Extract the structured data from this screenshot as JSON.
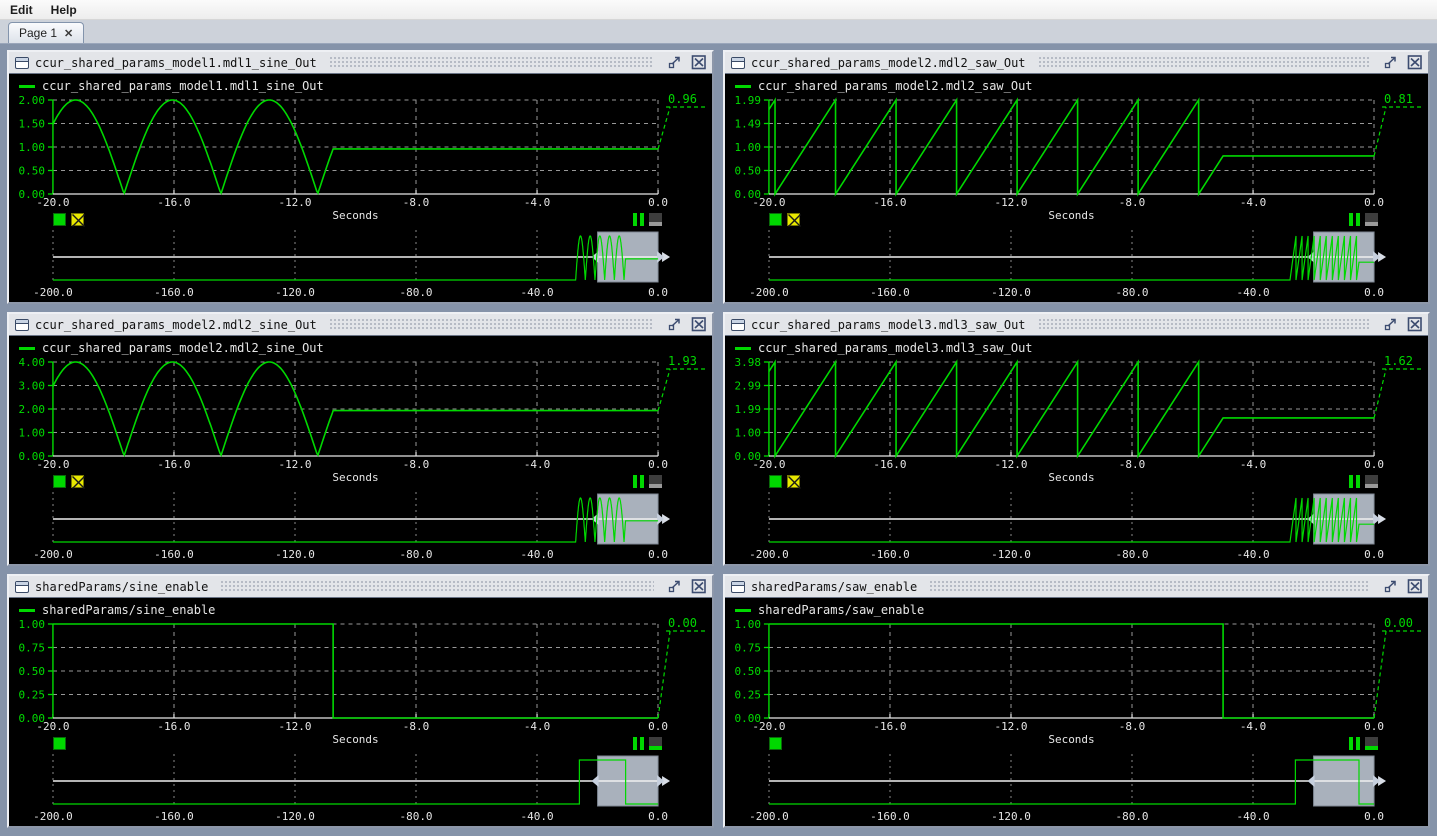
{
  "menu": {
    "items": [
      {
        "label": "Edit"
      },
      {
        "label": "Help"
      }
    ]
  },
  "tabs": [
    {
      "label": "Page 1",
      "close_glyph": "✕"
    }
  ],
  "colors": {
    "trace_green": "#00d800",
    "tick_label_green": "#00dd00",
    "axis_label_white": "#e6e6e6",
    "grid_gray": "#989898",
    "plot_background": "#000000",
    "window_background": "#8593a9",
    "viewport_box_fill": "#a9b1bc",
    "viewport_handle": "#c7d0de",
    "marker_yellow": "#e8e800",
    "indicator_gray": "#9a9a9a"
  },
  "panels": [
    {
      "title": "ccur_shared_params_model1.mdl1_sine_Out",
      "controls": {
        "run_button": true,
        "marker_button": true,
        "pause_icon": true,
        "indicator_strip": "#9a9a9a"
      },
      "chart_data": {
        "type": "line",
        "legend": "ccur_shared_params_model1.mdl1_sine_Out",
        "current_value": "0.96",
        "xlabel": "Seconds",
        "xlim": [
          -20,
          0
        ],
        "x_ticks": [
          "-20.0",
          "-16.0",
          "-12.0",
          "-8.0",
          "-4.0",
          "0.0"
        ],
        "ylim": [
          0,
          2
        ],
        "y_tick_labels": [
          "2.00",
          "1.50",
          "1.00",
          "0.50",
          "0.00"
        ],
        "grid": true,
        "signal": {
          "kind": "rect_sine",
          "amplitude": 2,
          "half_period": 3.2,
          "zero_ref": -17.65,
          "active_from": -27.25,
          "freeze_t": -10.74,
          "freeze_value": 0.96
        },
        "overview": {
          "xlim": [
            -200,
            0
          ],
          "x_ticks": [
            "-200.0",
            "-160.0",
            "-120.0",
            "-80.0",
            "-40.0",
            "0.0"
          ],
          "view_window": [
            -20,
            0
          ]
        }
      }
    },
    {
      "title": "ccur_shared_params_model2.mdl2_saw_Out",
      "controls": {
        "run_button": true,
        "marker_button": true,
        "pause_icon": true,
        "indicator_strip": "#9a9a9a"
      },
      "chart_data": {
        "type": "line",
        "legend": "ccur_shared_params_model2.mdl2_saw_Out",
        "current_value": "0.81",
        "xlabel": "Seconds",
        "xlim": [
          -20,
          0
        ],
        "x_ticks": [
          "-20.0",
          "-16.0",
          "-12.0",
          "-8.0",
          "-4.0",
          "0.0"
        ],
        "ylim": [
          0,
          2
        ],
        "y_tick_labels": [
          "1.99",
          "1.49",
          "1.00",
          "0.50",
          "0.00"
        ],
        "grid": true,
        "signal": {
          "kind": "sawtooth",
          "amplitude": 2,
          "period": 2,
          "drop_ref": -5.8,
          "active_from": -27.8,
          "freeze_t": -4.99,
          "freeze_value": 0.81
        },
        "overview": {
          "xlim": [
            -200,
            0
          ],
          "x_ticks": [
            "-200.0",
            "-160.0",
            "-120.0",
            "-80.0",
            "-40.0",
            "0.0"
          ],
          "view_window": [
            -20,
            0
          ]
        }
      }
    },
    {
      "title": "ccur_shared_params_model2.mdl2_sine_Out",
      "controls": {
        "run_button": true,
        "marker_button": true,
        "pause_icon": true,
        "indicator_strip": "#9a9a9a"
      },
      "chart_data": {
        "type": "line",
        "legend": "ccur_shared_params_model2.mdl2_sine_Out",
        "current_value": "1.93",
        "xlabel": "Seconds",
        "xlim": [
          -20,
          0
        ],
        "x_ticks": [
          "-20.0",
          "-16.0",
          "-12.0",
          "-8.0",
          "-4.0",
          "0.0"
        ],
        "ylim": [
          0,
          4
        ],
        "y_tick_labels": [
          "4.00",
          "3.00",
          "2.00",
          "1.00",
          "0.00"
        ],
        "grid": true,
        "signal": {
          "kind": "rect_sine",
          "amplitude": 4,
          "half_period": 3.2,
          "zero_ref": -17.65,
          "active_from": -27.25,
          "freeze_t": -10.74,
          "freeze_value": 1.93
        },
        "overview": {
          "xlim": [
            -200,
            0
          ],
          "x_ticks": [
            "-200.0",
            "-160.0",
            "-120.0",
            "-80.0",
            "-40.0",
            "0.0"
          ],
          "view_window": [
            -20,
            0
          ]
        }
      }
    },
    {
      "title": "ccur_shared_params_model3.mdl3_saw_Out",
      "controls": {
        "run_button": true,
        "marker_button": true,
        "pause_icon": true,
        "indicator_strip": "#9a9a9a"
      },
      "chart_data": {
        "type": "line",
        "legend": "ccur_shared_params_model3.mdl3_saw_Out",
        "current_value": "1.62",
        "xlabel": "Seconds",
        "xlim": [
          -20,
          0
        ],
        "x_ticks": [
          "-20.0",
          "-16.0",
          "-12.0",
          "-8.0",
          "-4.0",
          "0.0"
        ],
        "ylim": [
          0,
          4
        ],
        "y_tick_labels": [
          "3.98",
          "2.99",
          "1.99",
          "1.00",
          "0.00"
        ],
        "grid": true,
        "signal": {
          "kind": "sawtooth",
          "amplitude": 4,
          "period": 2,
          "drop_ref": -5.8,
          "active_from": -27.8,
          "freeze_t": -4.99,
          "freeze_value": 1.62
        },
        "overview": {
          "xlim": [
            -200,
            0
          ],
          "x_ticks": [
            "-200.0",
            "-160.0",
            "-120.0",
            "-80.0",
            "-40.0",
            "0.0"
          ],
          "view_window": [
            -20,
            0
          ]
        }
      }
    },
    {
      "title": "sharedParams/sine_enable",
      "controls": {
        "run_button": true,
        "marker_button": false,
        "pause_icon": true,
        "indicator_strip": "#00d800"
      },
      "chart_data": {
        "type": "line",
        "legend": "sharedParams/sine_enable",
        "current_value": "0.00",
        "xlabel": "Seconds",
        "xlim": [
          -20,
          0
        ],
        "x_ticks": [
          "-20.0",
          "-16.0",
          "-12.0",
          "-8.0",
          "-4.0",
          "0.0"
        ],
        "ylim": [
          0,
          1
        ],
        "y_tick_labels": [
          "1.00",
          "0.75",
          "0.50",
          "0.25",
          "0.00"
        ],
        "grid": true,
        "signal": {
          "kind": "step",
          "high": 1,
          "rise_t": -26,
          "drop_t": -10.74
        },
        "overview": {
          "xlim": [
            -200,
            0
          ],
          "x_ticks": [
            "-200.0",
            "-160.0",
            "-120.0",
            "-80.0",
            "-40.0",
            "0.0"
          ],
          "view_window": [
            -20,
            0
          ]
        }
      }
    },
    {
      "title": "sharedParams/saw_enable",
      "controls": {
        "run_button": true,
        "marker_button": false,
        "pause_icon": true,
        "indicator_strip": "#00d800"
      },
      "chart_data": {
        "type": "line",
        "legend": "sharedParams/saw_enable",
        "current_value": "0.00",
        "xlabel": "Seconds",
        "xlim": [
          -20,
          0
        ],
        "x_ticks": [
          "-20.0",
          "-16.0",
          "-12.0",
          "-8.0",
          "-4.0",
          "0.0"
        ],
        "ylim": [
          0,
          1
        ],
        "y_tick_labels": [
          "1.00",
          "0.75",
          "0.50",
          "0.25",
          "0.00"
        ],
        "grid": true,
        "signal": {
          "kind": "step",
          "high": 1,
          "rise_t": -26,
          "drop_t": -4.99
        },
        "overview": {
          "xlim": [
            -200,
            0
          ],
          "x_ticks": [
            "-200.0",
            "-160.0",
            "-120.0",
            "-80.0",
            "-40.0",
            "0.0"
          ],
          "view_window": [
            -20,
            0
          ]
        }
      }
    }
  ]
}
